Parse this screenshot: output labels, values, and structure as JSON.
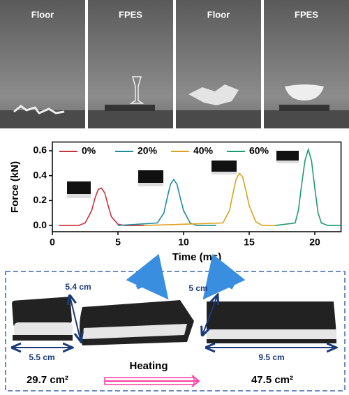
{
  "panels": [
    {
      "label": "Floor"
    },
    {
      "label": "FPES"
    },
    {
      "label": "Floor"
    },
    {
      "label": "FPES"
    }
  ],
  "chart_data": {
    "type": "line",
    "xlabel": "Time (ms)",
    "ylabel": "Force (kN)",
    "xlim": [
      0,
      22
    ],
    "xticks": [
      0,
      5,
      10,
      15,
      20
    ],
    "ylim": [
      -0.05,
      0.67
    ],
    "yticks": [
      {
        "value": 0,
        "label": "0.0"
      },
      0.2,
      0.4,
      0.6
    ],
    "series": [
      {
        "name": "0%",
        "color": "#c8323a",
        "x": [
          0.5,
          2,
          2.5,
          3,
          3.25,
          3.5,
          3.75,
          4,
          4.25,
          4.5,
          5,
          5.5,
          7
        ],
        "values": [
          0,
          0,
          0.02,
          0.12,
          0.22,
          0.29,
          0.3,
          0.26,
          0.16,
          0.07,
          0.01,
          0,
          0
        ]
      },
      {
        "name": "20%",
        "color": "#1e8c9c",
        "x": [
          5,
          8,
          8.5,
          8.75,
          9,
          9.25,
          9.5,
          9.75,
          10,
          10.5,
          11,
          12.5
        ],
        "values": [
          0,
          0.02,
          0.1,
          0.22,
          0.33,
          0.37,
          0.33,
          0.22,
          0.12,
          0.02,
          0,
          0
        ]
      },
      {
        "name": "40%",
        "color": "#dba21c",
        "x": [
          7,
          13,
          13.5,
          13.75,
          14,
          14.25,
          14.5,
          14.75,
          15,
          15.5,
          16,
          17
        ],
        "values": [
          0,
          0.02,
          0.12,
          0.25,
          0.37,
          0.42,
          0.39,
          0.28,
          0.16,
          0.03,
          0,
          0
        ]
      },
      {
        "name": "60%",
        "color": "#1f9a6e",
        "x": [
          17,
          18.5,
          18.75,
          19,
          19.25,
          19.5,
          19.75,
          20,
          20.25,
          20.5,
          21,
          22
        ],
        "values": [
          0,
          0.02,
          0.12,
          0.33,
          0.52,
          0.61,
          0.52,
          0.3,
          0.1,
          0.02,
          0,
          0
        ]
      }
    ]
  },
  "expansion": {
    "before_height": "5.4 cm",
    "before_width": "5.5 cm",
    "after_height": "5 cm",
    "after_width": "9.5 cm",
    "before_area": "29.7 cm²",
    "process": "Heating",
    "after_area": "47.5 cm²"
  }
}
